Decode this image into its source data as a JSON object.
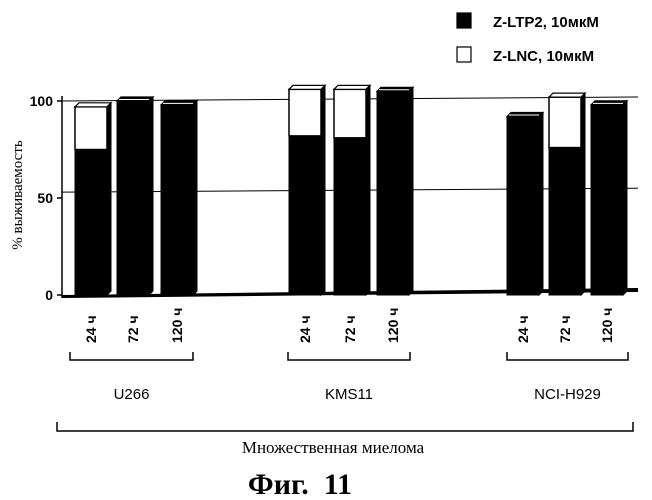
{
  "chart_data": {
    "type": "bar",
    "stacked": true,
    "legend_position": "top-right",
    "ylabel": "% выживаемость",
    "yticks": [
      0,
      50,
      100
    ],
    "ylim": [
      0,
      100
    ],
    "reference_lines": [
      100,
      53
    ],
    "categories": [
      "24 ч",
      "72 ч",
      "120 ч",
      "24 ч",
      "72 ч",
      "120 ч",
      "24 ч",
      "72 ч",
      "120 ч"
    ],
    "groups": [
      {
        "label": "U266",
        "categories": [
          "24 ч",
          "72 ч",
          "120 ч"
        ]
      },
      {
        "label": "KMS11",
        "categories": [
          "24 ч",
          "72 ч",
          "120 ч"
        ]
      },
      {
        "label": "NCI-H929",
        "categories": [
          "24 ч",
          "72 ч",
          "120 ч"
        ]
      }
    ],
    "series": [
      {
        "name": "Z-LTP2, 10мкМ",
        "color": "#000000",
        "values": [
          75,
          100,
          98,
          82,
          81,
          105,
          92,
          76,
          98
        ]
      },
      {
        "name": "Z-LNC, 10мкМ",
        "color": "#ffffff",
        "values": [
          22,
          0,
          0,
          24,
          25,
          0,
          0,
          26,
          0
        ]
      }
    ],
    "xlabel": "Множественная миелома",
    "caption": "Фиг.  11"
  }
}
